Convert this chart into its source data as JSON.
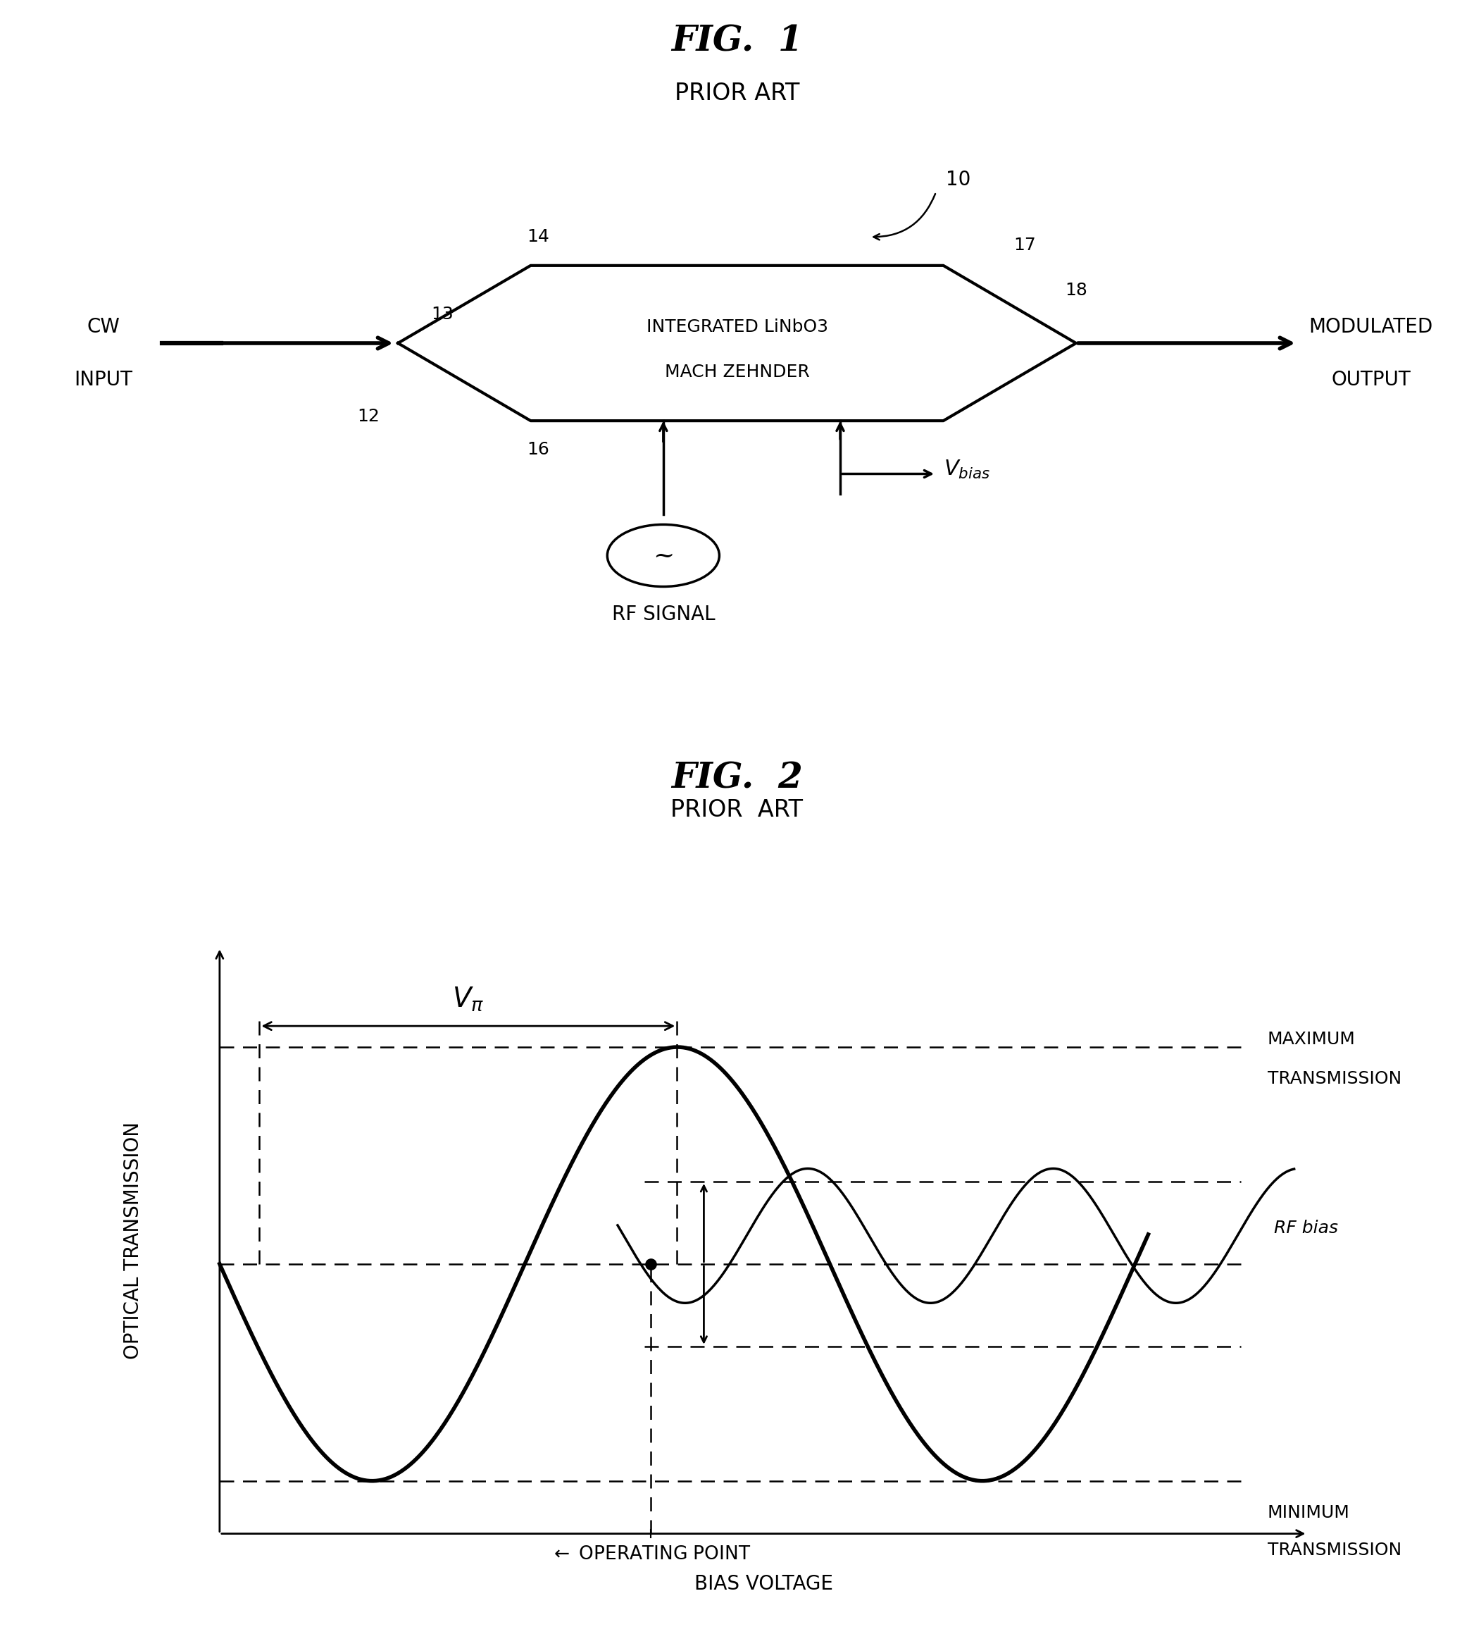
{
  "fig1_title": "FIG.  1",
  "fig1_subtitle": "PRIOR ART",
  "fig2_title": "FIG.  2",
  "fig2_subtitle": "PRIOR  ART",
  "mz_label_line1": "INTEGRATED LiNbO3",
  "mz_label_line2": "MACH ZEHNDER",
  "rf_signal": "RF SIGNAL",
  "xlabel": "BIAS VOLTAGE",
  "ylabel": "OPTICAL TRANSMISSION",
  "max_tx_line1": "MAXIMUM",
  "max_tx_line2": "TRANSMISSION",
  "min_tx_line1": "MINIMUM",
  "min_tx_line2": "TRANSMISSION",
  "operating_point": "OPERATING POINT",
  "rf_bias": "RF bias",
  "bg_color": "#ffffff",
  "line_color": "#000000"
}
